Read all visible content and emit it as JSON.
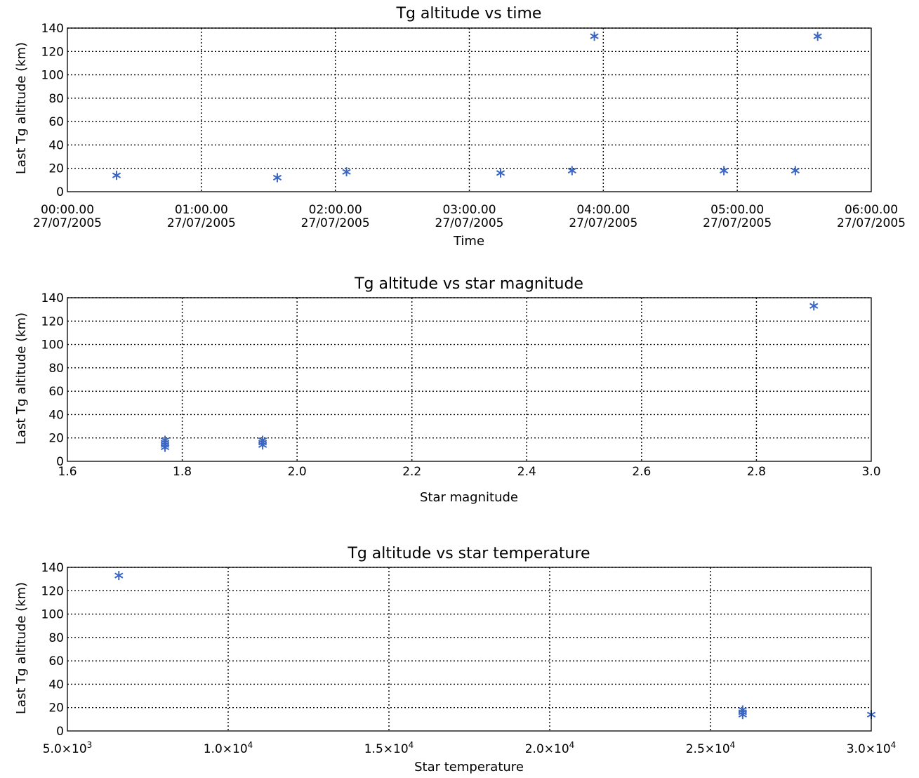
{
  "colors": {
    "marker": "#3a66c4",
    "axes": "#000000"
  },
  "chart_data": [
    {
      "type": "scatter",
      "title": "Tg altitude vs time",
      "xlabel": "Time",
      "ylabel": "Last Tg altitude (km)",
      "xlim": [
        "2005-07-27T00:00:00",
        "2005-07-27T06:00:00"
      ],
      "ylim": [
        0,
        140
      ],
      "grid": true,
      "marker": "asterisk",
      "yticks": [
        "0",
        "20",
        "40",
        "60",
        "80",
        "100",
        "120",
        "140"
      ],
      "xticks": [
        {
          "time": "00:00.00",
          "date": "27/07/2005"
        },
        {
          "time": "01:00.00",
          "date": "27/07/2005"
        },
        {
          "time": "02:00.00",
          "date": "27/07/2005"
        },
        {
          "time": "03:00.00",
          "date": "27/07/2005"
        },
        {
          "time": "04:00.00",
          "date": "27/07/2005"
        },
        {
          "time": "05:00.00",
          "date": "27/07/2005"
        },
        {
          "time": "06:00.00",
          "date": "27/07/2005"
        }
      ],
      "points": [
        {
          "x": "2005-07-27T00:22:00",
          "y": 14
        },
        {
          "x": "2005-07-27T01:34:00",
          "y": 12
        },
        {
          "x": "2005-07-27T02:05:00",
          "y": 17
        },
        {
          "x": "2005-07-27T03:14:00",
          "y": 16
        },
        {
          "x": "2005-07-27T03:46:00",
          "y": 18
        },
        {
          "x": "2005-07-27T03:56:00",
          "y": 133
        },
        {
          "x": "2005-07-27T04:54:00",
          "y": 18
        },
        {
          "x": "2005-07-27T05:26:00",
          "y": 18
        },
        {
          "x": "2005-07-27T05:36:00",
          "y": 133
        }
      ]
    },
    {
      "type": "scatter",
      "title": "Tg altitude vs star magnitude",
      "xlabel": "Star magnitude",
      "ylabel": "Last Tg altitude (km)",
      "xlim": [
        1.6,
        3.0
      ],
      "ylim": [
        0,
        140
      ],
      "grid": true,
      "marker": "asterisk",
      "yticks": [
        "0",
        "20",
        "40",
        "60",
        "80",
        "100",
        "120",
        "140"
      ],
      "xticks": [
        "1.6",
        "1.8",
        "2.0",
        "2.2",
        "2.4",
        "2.6",
        "2.8",
        "3.0"
      ],
      "points": [
        {
          "x": 1.77,
          "y": 18
        },
        {
          "x": 1.77,
          "y": 16
        },
        {
          "x": 1.77,
          "y": 14
        },
        {
          "x": 1.77,
          "y": 12
        },
        {
          "x": 1.94,
          "y": 18
        },
        {
          "x": 1.94,
          "y": 16
        },
        {
          "x": 1.94,
          "y": 14
        },
        {
          "x": 2.9,
          "y": 133
        }
      ]
    },
    {
      "type": "scatter",
      "title": "Tg altitude vs star temperature",
      "xlabel": "Star temperature",
      "ylabel": "Last Tg altitude (km)",
      "xlim": [
        5000,
        30000
      ],
      "ylim": [
        0,
        140
      ],
      "grid": true,
      "marker": "asterisk",
      "yticks": [
        "0",
        "20",
        "40",
        "60",
        "80",
        "100",
        "120",
        "140"
      ],
      "xticks": [
        {
          "mant": "5.0",
          "exp": "3"
        },
        {
          "mant": "1.0",
          "exp": "4"
        },
        {
          "mant": "1.5",
          "exp": "4"
        },
        {
          "mant": "2.0",
          "exp": "4"
        },
        {
          "mant": "2.5",
          "exp": "4"
        },
        {
          "mant": "3.0",
          "exp": "4"
        }
      ],
      "points": [
        {
          "x": 6600,
          "y": 133
        },
        {
          "x": 26000,
          "y": 18
        },
        {
          "x": 26000,
          "y": 16
        },
        {
          "x": 26000,
          "y": 14
        },
        {
          "x": 30000,
          "y": 14
        }
      ]
    }
  ]
}
